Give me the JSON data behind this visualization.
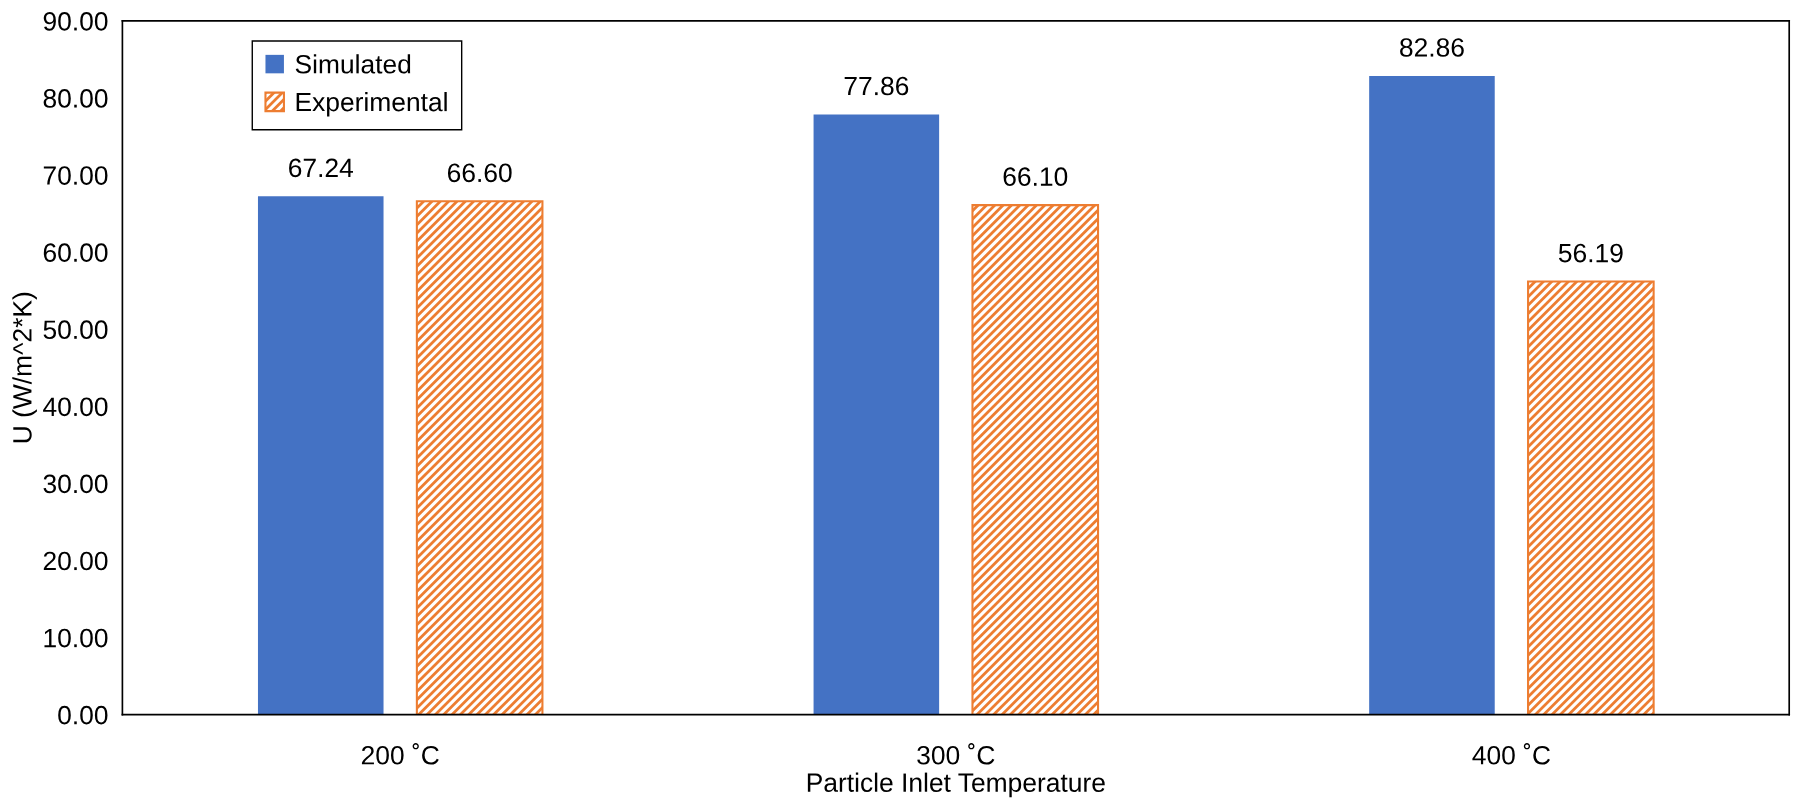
{
  "chart_data": {
    "type": "bar",
    "xlabel": "Particle Inlet Temperature",
    "ylabel": "U (W/m^2*K)",
    "categories": [
      "200 ˚C",
      "300 ˚C",
      "400 ˚C"
    ],
    "series": [
      {
        "name": "Simulated",
        "color": "#4472c4",
        "values": [
          67.24,
          77.86,
          82.86
        ],
        "value_labels": [
          "67.24",
          "77.86",
          "82.86"
        ]
      },
      {
        "name": "Experimental",
        "color": "#ed7d31",
        "values": [
          66.6,
          66.1,
          56.19
        ],
        "value_labels": [
          "66.60",
          "66.10",
          "56.19"
        ]
      }
    ],
    "ylim": [
      0,
      90
    ],
    "yticks": [
      {
        "value": 0,
        "label": "0.00"
      },
      {
        "value": 10,
        "label": "10.00"
      },
      {
        "value": 20,
        "label": "20.00"
      },
      {
        "value": 30,
        "label": "30.00"
      },
      {
        "value": 40,
        "label": "40.00"
      },
      {
        "value": 50,
        "label": "50.00"
      },
      {
        "value": 60,
        "label": "60.00"
      },
      {
        "value": 70,
        "label": "70.00"
      },
      {
        "value": 80,
        "label": "80.00"
      },
      {
        "value": 90,
        "label": "90.00"
      }
    ],
    "grid": false,
    "legend": "top left"
  }
}
